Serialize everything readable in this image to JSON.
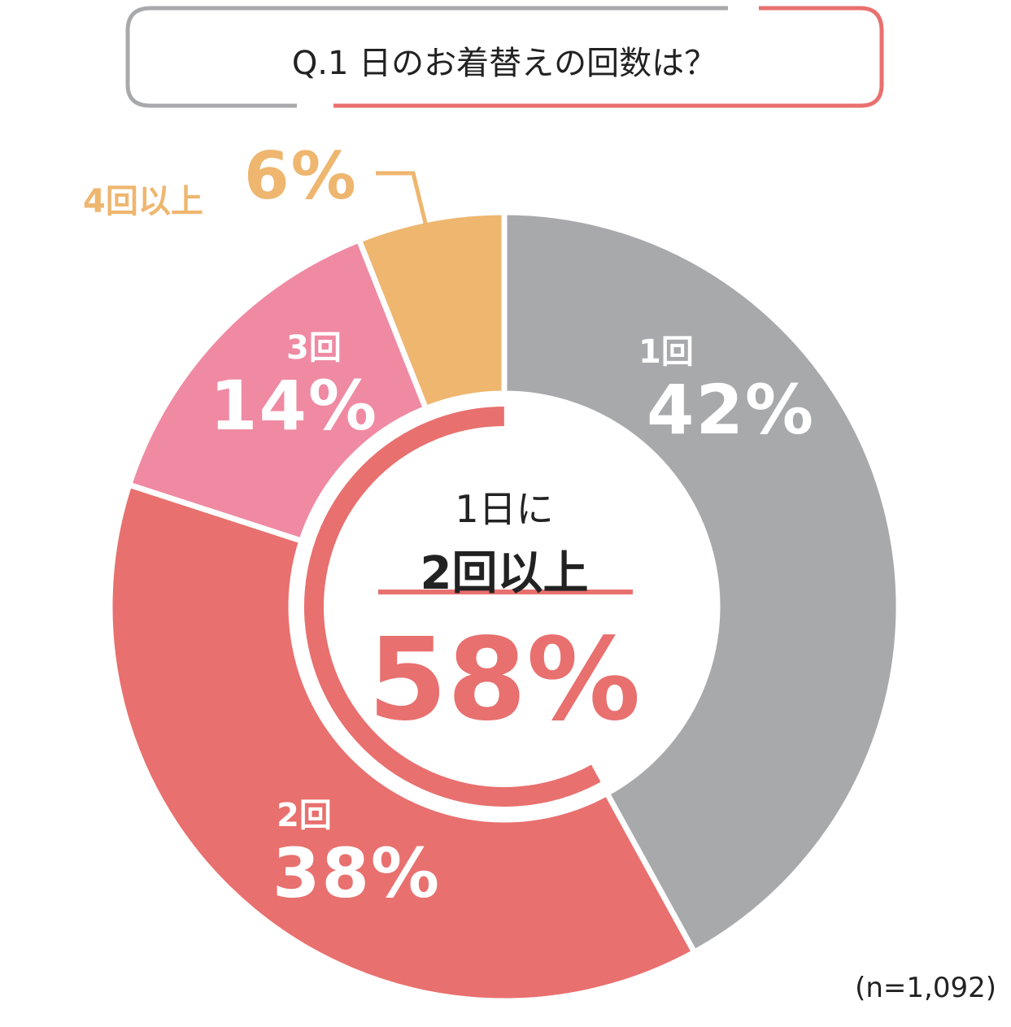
{
  "chart_data": {
    "type": "pie",
    "title": "Q.1 日のお着替えの回数は？",
    "categories": [
      "1回",
      "2回",
      "3回",
      "4回以上"
    ],
    "values": [
      42,
      38,
      14,
      6
    ],
    "labels": [
      "42%",
      "38%",
      "14%",
      "6%"
    ],
    "colors": [
      "#a8a9ab",
      "#e8706e",
      "#ef8aa2",
      "#eeb66f"
    ],
    "donut": true,
    "start": "12 o'clock, clockwise",
    "center": {
      "line1": "1日に",
      "line2": "2回以上",
      "value": "58%",
      "value_number": 58,
      "color": "#e8706e"
    },
    "note": "(n=1,092)"
  }
}
